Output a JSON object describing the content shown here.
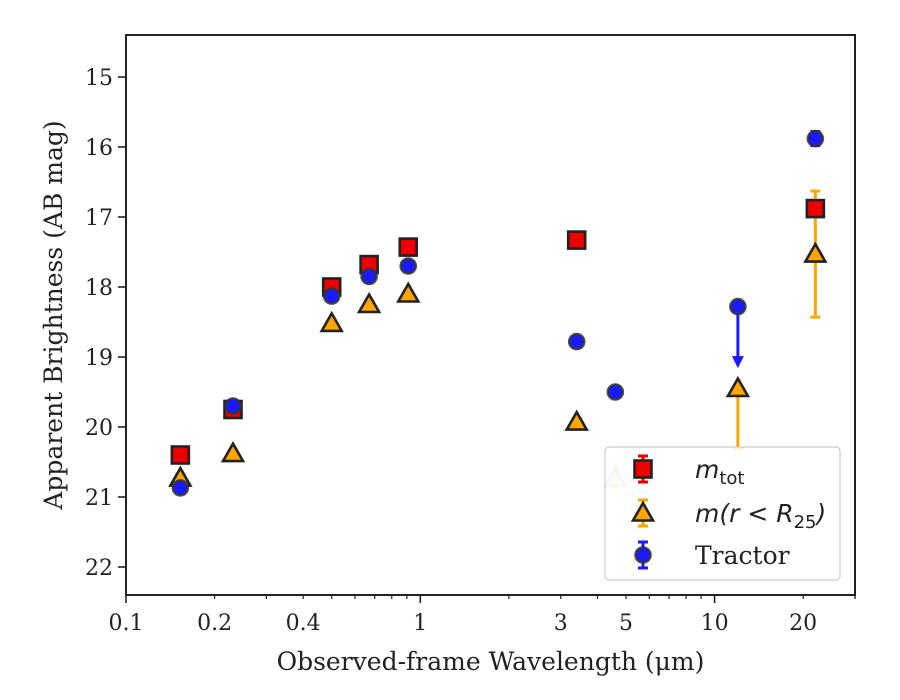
{
  "chart_data": {
    "type": "scatter",
    "xlabel": "Observed-frame Wavelength (μm)",
    "ylabel": "Apparent Brightness (AB mag)",
    "x_scale": "log",
    "xlim": [
      0.1,
      30
    ],
    "ylim": [
      22.4,
      14.4
    ],
    "y_inverted": true,
    "x_ticks": [
      {
        "value": 0.1,
        "label": "0.1"
      },
      {
        "value": 0.2,
        "label": "0.2"
      },
      {
        "value": 0.4,
        "label": "0.4"
      },
      {
        "value": 1,
        "label": "1"
      },
      {
        "value": 3,
        "label": "3"
      },
      {
        "value": 5,
        "label": "5"
      },
      {
        "value": 10,
        "label": "10"
      },
      {
        "value": 20,
        "label": "20"
      }
    ],
    "y_ticks": [
      {
        "value": 15,
        "label": "15"
      },
      {
        "value": 16,
        "label": "16"
      },
      {
        "value": 17,
        "label": "17"
      },
      {
        "value": 18,
        "label": "18"
      },
      {
        "value": 19,
        "label": "19"
      },
      {
        "value": 20,
        "label": "20"
      },
      {
        "value": 21,
        "label": "21"
      },
      {
        "value": 22,
        "label": "22"
      }
    ],
    "grid": false,
    "legend_position": "lower right",
    "series": [
      {
        "name": "m_tot",
        "legend_main": "m",
        "legend_sub": "tot",
        "marker": "square",
        "color": "#ee0000",
        "points": [
          {
            "x": 0.153,
            "y": 20.4,
            "err": 0.05
          },
          {
            "x": 0.231,
            "y": 19.75,
            "err": 0.05
          },
          {
            "x": 0.5,
            "y": 18.0,
            "err": 0.05
          },
          {
            "x": 0.67,
            "y": 17.68,
            "err": 0.05
          },
          {
            "x": 0.91,
            "y": 17.43,
            "err": 0.05
          },
          {
            "x": 3.4,
            "y": 17.33,
            "err": 0.05
          },
          {
            "x": 22.0,
            "y": 16.88,
            "err": 0.1
          }
        ]
      },
      {
        "name": "m(r < R25)",
        "legend_main": "m(r < R",
        "legend_sub": "25",
        "legend_tail": ")",
        "marker": "triangle",
        "color": "#ffa500",
        "points": [
          {
            "x": 0.153,
            "y": 20.73,
            "err": 0.05
          },
          {
            "x": 0.231,
            "y": 20.38,
            "err": 0.05
          },
          {
            "x": 0.5,
            "y": 18.52,
            "err": 0.05
          },
          {
            "x": 0.67,
            "y": 18.25,
            "err": 0.05
          },
          {
            "x": 0.91,
            "y": 18.1,
            "err": 0.05
          },
          {
            "x": 3.4,
            "y": 19.93,
            "err": 0.05
          },
          {
            "x": 4.6,
            "y": 20.73,
            "err": 0.2
          },
          {
            "x": 12.0,
            "y": 19.45,
            "err_low": 0.85,
            "err_high": 0.0
          },
          {
            "x": 22.0,
            "y": 17.53,
            "err_low": 0.9,
            "err_high": 0.9
          }
        ]
      },
      {
        "name": "Tractor",
        "legend_main": "Tractor",
        "marker": "circle",
        "color": "#1a1aff",
        "points": [
          {
            "x": 0.153,
            "y": 20.87,
            "err": 0.05
          },
          {
            "x": 0.231,
            "y": 19.7,
            "err": 0.05
          },
          {
            "x": 0.5,
            "y": 18.13,
            "err": 0.05
          },
          {
            "x": 0.67,
            "y": 17.85,
            "err": 0.05
          },
          {
            "x": 0.91,
            "y": 17.7,
            "err": 0.05
          },
          {
            "x": 3.4,
            "y": 18.78,
            "err": 0.05
          },
          {
            "x": 4.6,
            "y": 19.5,
            "err": 0.05
          },
          {
            "x": 12.0,
            "y": 18.28,
            "upper_limit": true,
            "arrow_to": 19.13
          },
          {
            "x": 22.0,
            "y": 15.88,
            "err": 0.1
          }
        ]
      }
    ]
  }
}
